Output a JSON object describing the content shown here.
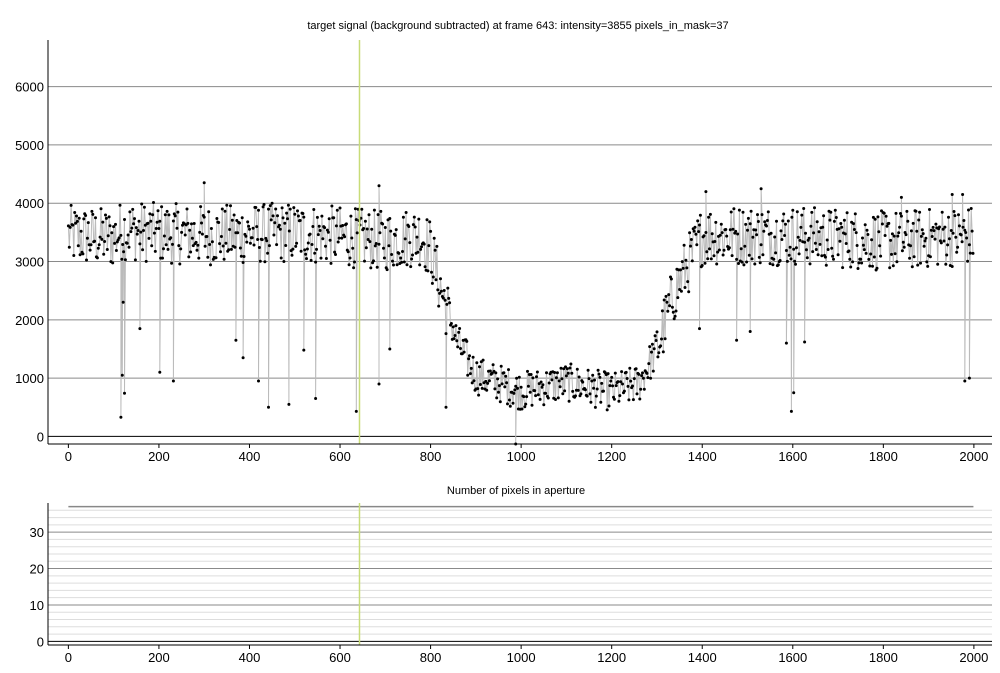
{
  "chart_data": [
    {
      "type": "line",
      "title": "target signal (background subtracted) at frame 643: intensity=3855 pixels_in_mask=37",
      "xlabel": "",
      "ylabel": "",
      "xlim": [
        -45,
        2040
      ],
      "ylim": [
        -130,
        6800
      ],
      "xticks": [
        0,
        200,
        400,
        600,
        800,
        1000,
        1200,
        1400,
        1600,
        1800,
        2000
      ],
      "yticks": [
        0,
        1000,
        2000,
        3000,
        4000,
        5000,
        6000
      ],
      "grid": true,
      "cursor_frame": 643,
      "cursor_color": "#c8dc78",
      "line_color": "#bbbbbb",
      "marker_color": "#000000",
      "n_frames": 2000,
      "profile_x": [
        0,
        100,
        120,
        180,
        300,
        500,
        640,
        700,
        780,
        800,
        820,
        860,
        900,
        1000,
        1100,
        1200,
        1260,
        1300,
        1340,
        1400,
        1600,
        1800,
        2000
      ],
      "profile_y": [
        3450,
        3400,
        3550,
        3500,
        3450,
        3500,
        3400,
        3350,
        3450,
        3200,
        2600,
        1600,
        1050,
        780,
        930,
        760,
        900,
        1500,
        2500,
        3450,
        3450,
        3350,
        3450
      ],
      "dips": [
        {
          "x": 116,
          "y": 330
        },
        {
          "x": 119,
          "y": 1050
        },
        {
          "x": 121,
          "y": 2300
        },
        {
          "x": 124,
          "y": 740
        },
        {
          "x": 158,
          "y": 1850
        },
        {
          "x": 202,
          "y": 1100
        },
        {
          "x": 232,
          "y": 950
        },
        {
          "x": 370,
          "y": 1650
        },
        {
          "x": 386,
          "y": 1350
        },
        {
          "x": 420,
          "y": 950
        },
        {
          "x": 442,
          "y": 500
        },
        {
          "x": 487,
          "y": 550
        },
        {
          "x": 520,
          "y": 1480
        },
        {
          "x": 546,
          "y": 650
        },
        {
          "x": 636,
          "y": 430
        },
        {
          "x": 686,
          "y": 900
        },
        {
          "x": 710,
          "y": 1500
        },
        {
          "x": 834,
          "y": 500
        },
        {
          "x": 988,
          "y": -130
        },
        {
          "x": 1394,
          "y": 1850
        },
        {
          "x": 1476,
          "y": 1650
        },
        {
          "x": 1506,
          "y": 1800
        },
        {
          "x": 1586,
          "y": 1600
        },
        {
          "x": 1597,
          "y": 430
        },
        {
          "x": 1602,
          "y": 750
        },
        {
          "x": 1626,
          "y": 1620
        },
        {
          "x": 1980,
          "y": 950
        },
        {
          "x": 1990,
          "y": 1000
        }
      ],
      "spikes": [
        {
          "x": 300,
          "y": 4350
        },
        {
          "x": 686,
          "y": 4300
        },
        {
          "x": 1408,
          "y": 4200
        },
        {
          "x": 1530,
          "y": 4250
        },
        {
          "x": 1952,
          "y": 4150
        },
        {
          "x": 1975,
          "y": 4150
        },
        {
          "x": 1840,
          "y": 4100
        }
      ]
    },
    {
      "type": "line",
      "title": "Number of pixels in aperture",
      "xlabel": "",
      "ylabel": "",
      "xlim": [
        -45,
        2040
      ],
      "ylim": [
        -1,
        38
      ],
      "xticks": [
        0,
        200,
        400,
        600,
        800,
        1000,
        1200,
        1400,
        1600,
        1800,
        2000
      ],
      "yticks": [
        0,
        10,
        20,
        30
      ],
      "grid": true,
      "x": [
        0,
        1999
      ],
      "y": [
        37,
        37
      ],
      "cursor_frame": 643,
      "cursor_color": "#c8dc78",
      "line_color": "#888888"
    }
  ]
}
